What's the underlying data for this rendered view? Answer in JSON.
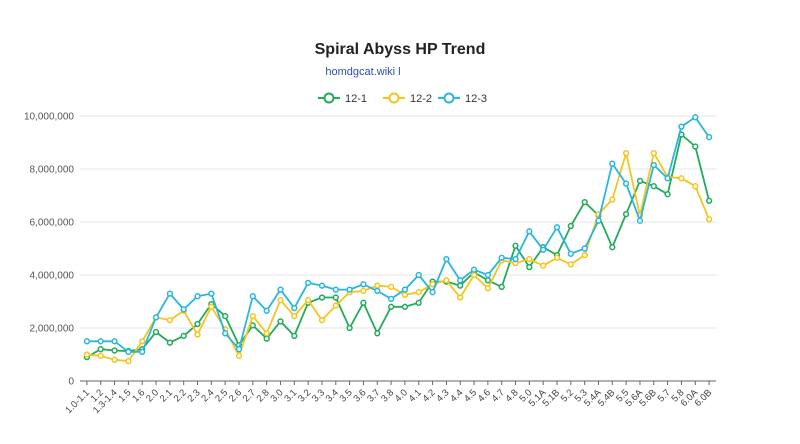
{
  "chart_data": {
    "type": "line",
    "title": "Spiral Abyss HP Trend",
    "subtitle": "homdgcat.wiki l",
    "xlabel": "",
    "ylabel": "",
    "ylim": [
      0,
      10000000
    ],
    "yticks": [
      0,
      2000000,
      4000000,
      6000000,
      8000000,
      10000000
    ],
    "ytick_labels": [
      "0",
      "2,000,000",
      "4,000,000",
      "6,000,000",
      "8,000,000",
      "10,000,000"
    ],
    "grid": true,
    "legend": "top-center",
    "categories": [
      "1.0-1.1",
      "1.2",
      "1.3-1.4",
      "1.5",
      "1.6",
      "2.0",
      "2.1",
      "2.2",
      "2.3",
      "2.4",
      "2.5",
      "2.6",
      "2.7",
      "2.8",
      "3.0",
      "3.1",
      "3.2",
      "3.3",
      "3.4",
      "3.5",
      "3.6",
      "3.7",
      "3.8",
      "4.0",
      "4.1",
      "4.2",
      "4.3",
      "4.4",
      "4.5",
      "4.6",
      "4.7",
      "4.8",
      "5.0",
      "5.1A",
      "5.1B",
      "5.2",
      "5.3",
      "5.4A",
      "5.4B",
      "5.5",
      "5.6A",
      "5.6B",
      "5.7",
      "5.8",
      "6.0A",
      "6.0B"
    ],
    "series": [
      {
        "name": "12-1",
        "color": "#22ab5a",
        "values": [
          900000,
          1200000,
          1150000,
          1130000,
          1200000,
          1850000,
          1450000,
          1700000,
          2150000,
          2900000,
          2450000,
          1350000,
          2100000,
          1600000,
          2250000,
          1700000,
          2950000,
          3150000,
          3150000,
          2000000,
          2950000,
          1800000,
          2800000,
          2800000,
          2950000,
          3750000,
          3750000,
          3600000,
          4100000,
          3800000,
          3550000,
          5100000,
          4300000,
          5050000,
          4750000,
          5850000,
          6750000,
          6250000,
          5050000,
          6300000,
          7550000,
          7350000,
          7050000,
          9300000,
          8850000,
          6800000
        ]
      },
      {
        "name": "12-2",
        "color": "#f5c51d",
        "values": [
          1000000,
          950000,
          800000,
          750000,
          1500000,
          2400000,
          2300000,
          2650000,
          1750000,
          2800000,
          1950000,
          950000,
          2450000,
          1800000,
          3050000,
          2450000,
          3050000,
          2300000,
          2850000,
          3350000,
          3400000,
          3600000,
          3550000,
          3250000,
          3350000,
          3650000,
          3800000,
          3150000,
          4000000,
          3500000,
          4550000,
          4450000,
          4600000,
          4350000,
          4650000,
          4400000,
          4750000,
          6300000,
          6850000,
          8600000,
          6250000,
          8600000,
          7700000,
          7650000,
          7350000,
          6100000
        ]
      },
      {
        "name": "12-3",
        "color": "#29b6df",
        "values": [
          1500000,
          1500000,
          1500000,
          1100000,
          1100000,
          2400000,
          3300000,
          2700000,
          3200000,
          3300000,
          1800000,
          1200000,
          3200000,
          2650000,
          3450000,
          2750000,
          3700000,
          3600000,
          3450000,
          3450000,
          3650000,
          3400000,
          3100000,
          3450000,
          4000000,
          3350000,
          4600000,
          3800000,
          4200000,
          4000000,
          4650000,
          4600000,
          5650000,
          4950000,
          5800000,
          4800000,
          5000000,
          6050000,
          8200000,
          7450000,
          6050000,
          8150000,
          7650000,
          9600000,
          9950000,
          9200000
        ]
      }
    ]
  }
}
